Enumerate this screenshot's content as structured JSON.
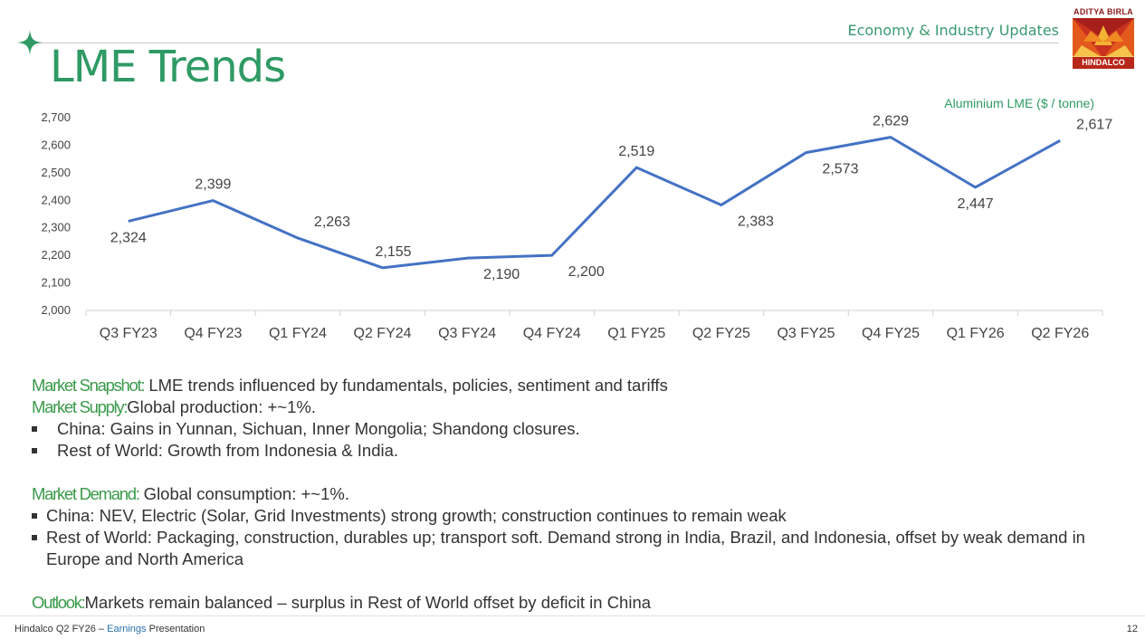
{
  "header": {
    "section_label": "Economy & Industry Updates",
    "title": "LME Trends",
    "logo_top_text": "ADITYA BIRLA",
    "logo_bottom_text": "HINDALCO"
  },
  "colors": {
    "accent_green": "#2f9a64",
    "line_blue": "#4472c4",
    "label_green": "#3a9a4a"
  },
  "chart_data": {
    "type": "line",
    "series_title": "Aluminium LME ($ / tonne)",
    "categories": [
      "Q3 FY23",
      "Q4 FY23",
      "Q1 FY24",
      "Q2 FY24",
      "Q3 FY24",
      "Q4 FY24",
      "Q1 FY25",
      "Q2 FY25",
      "Q3 FY25",
      "Q4 FY25",
      "Q1 FY26",
      "Q2 FY26"
    ],
    "values": [
      2324,
      2399,
      2263,
      2155,
      2190,
      2200,
      2519,
      2383,
      2573,
      2629,
      2447,
      2617
    ],
    "value_labels": [
      "2,324",
      "2,399",
      "2,263",
      "2,155",
      "2,190",
      "2,200",
      "2,519",
      "2,383",
      "2,573",
      "2,629",
      "2,447",
      "2,617"
    ],
    "ylim": [
      2000,
      2700
    ],
    "yticks": [
      2000,
      2100,
      2200,
      2300,
      2400,
      2500,
      2600,
      2700
    ],
    "ytick_labels": [
      "2,000",
      "2,100",
      "2,200",
      "2,300",
      "2,400",
      "2,500",
      "2,600",
      "2,700"
    ],
    "grid": false,
    "legend": "top-right"
  },
  "snapshot": {
    "market_snapshot_label": "Market Snapshot:",
    "market_snapshot_text": " LME trends influenced by fundamentals, policies, sentiment and tariffs",
    "market_supply_label": "Market Supply:",
    "market_supply_text": "Global production: +~1%.",
    "supply_bullets": [
      "China: Gains in Yunnan, Sichuan, Inner Mongolia; Shandong closures.",
      "Rest of World: Growth from Indonesia & India."
    ],
    "market_demand_label": "Market Demand:",
    "market_demand_text": " Global consumption: +~1%.",
    "demand_bullets": [
      "China: NEV, Electric (Solar, Grid Investments) strong growth; construction continues to remain weak",
      "Rest of World: Packaging, construction, durables up; transport soft. Demand strong in India, Brazil, and Indonesia, offset by weak demand in Europe and North America"
    ],
    "outlook_label": "Outlook:",
    "outlook_text": "Markets remain balanced – surplus in Rest of World offset by deficit in China"
  },
  "footer": {
    "left_text_1": "Hindalco Q2 FY26 – ",
    "left_text_em": "Earnings",
    "left_text_2": " Presentation",
    "page_number": "12"
  }
}
